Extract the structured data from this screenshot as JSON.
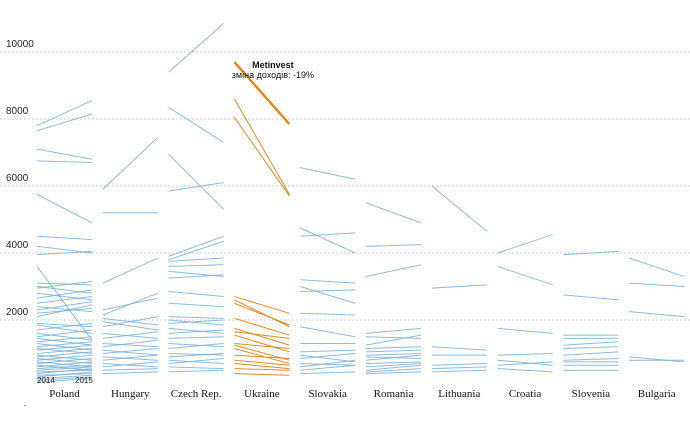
{
  "chart_data": {
    "type": "slope",
    "title": "",
    "ylabel": "",
    "ylim": [
      0,
      10500
    ],
    "yticks": [
      2000,
      4000,
      6000,
      8000,
      10000
    ],
    "ytick_labels": [
      "2000",
      "4000",
      "6000",
      "8000",
      "10000"
    ],
    "grid": true,
    "year_labels": [
      "2014",
      "2015"
    ],
    "colors": {
      "default": "#7bafd4",
      "highlight": "#e08a1e",
      "grid": "#cccccc"
    },
    "annotation": {
      "group": "Ukraine",
      "title": "Metinvest",
      "subtitle": "зміна доходів: -19%",
      "from": 9700,
      "to": 7850
    },
    "groups": [
      {
        "name": "Poland",
        "highlight": false,
        "series": [
          [
            7800,
            8550
          ],
          [
            7650,
            8150
          ],
          [
            7100,
            6800
          ],
          [
            6750,
            6700
          ],
          [
            5750,
            4900
          ],
          [
            4500,
            4400
          ],
          [
            4200,
            4000
          ],
          [
            3950,
            4050
          ],
          [
            3600,
            1400
          ],
          [
            3100,
            3050
          ],
          [
            3000,
            2800
          ],
          [
            2950,
            3150
          ],
          [
            2800,
            2600
          ],
          [
            2650,
            2900
          ],
          [
            2500,
            2700
          ],
          [
            2400,
            2250
          ],
          [
            2300,
            2550
          ],
          [
            2200,
            2350
          ],
          [
            2100,
            2450
          ],
          [
            1900,
            1800
          ],
          [
            1850,
            1600
          ],
          [
            1700,
            1900
          ],
          [
            1600,
            1400
          ],
          [
            1500,
            1700
          ],
          [
            1450,
            1250
          ],
          [
            1350,
            1500
          ],
          [
            1300,
            1100
          ],
          [
            1200,
            1350
          ],
          [
            1150,
            1000
          ],
          [
            1100,
            1250
          ],
          [
            1000,
            1150
          ],
          [
            950,
            800
          ],
          [
            900,
            1050
          ],
          [
            850,
            700
          ],
          [
            800,
            950
          ],
          [
            750,
            600
          ],
          [
            700,
            850
          ],
          [
            650,
            500
          ],
          [
            600,
            750
          ],
          [
            550,
            650
          ],
          [
            500,
            600
          ],
          [
            450,
            500
          ],
          [
            400,
            550
          ],
          [
            350,
            400
          ],
          [
            300,
            450
          ],
          [
            250,
            350
          ],
          [
            200,
            300
          ],
          [
            150,
            250
          ]
        ]
      },
      {
        "name": "Hungary",
        "highlight": false,
        "series": [
          [
            5900,
            7450
          ],
          [
            5200,
            5200
          ],
          [
            3100,
            3850
          ],
          [
            2300,
            2650
          ],
          [
            2150,
            2800
          ],
          [
            2050,
            1850
          ],
          [
            1950,
            1700
          ],
          [
            1800,
            2100
          ],
          [
            1600,
            1450
          ],
          [
            1450,
            1650
          ],
          [
            1300,
            1200
          ],
          [
            1200,
            1400
          ],
          [
            1100,
            950
          ],
          [
            1000,
            1150
          ],
          [
            900,
            800
          ],
          [
            800,
            950
          ],
          [
            700,
            600
          ],
          [
            600,
            750
          ],
          [
            500,
            550
          ],
          [
            400,
            450
          ]
        ]
      },
      {
        "name": "Czech Rep.",
        "highlight": false,
        "series": [
          [
            9400,
            10850
          ],
          [
            8350,
            7300
          ],
          [
            6950,
            5300
          ],
          [
            5850,
            6100
          ],
          [
            3900,
            4500
          ],
          [
            3800,
            4350
          ],
          [
            3750,
            3850
          ],
          [
            3600,
            3650
          ],
          [
            3450,
            3300
          ],
          [
            3250,
            3350
          ],
          [
            2850,
            2700
          ],
          [
            2500,
            2400
          ],
          [
            2100,
            2050
          ],
          [
            2000,
            1850
          ],
          [
            1900,
            2000
          ],
          [
            1750,
            1600
          ],
          [
            1600,
            1700
          ],
          [
            1450,
            1500
          ],
          [
            1300,
            1200
          ],
          [
            1150,
            1300
          ],
          [
            1000,
            950
          ],
          [
            900,
            1000
          ],
          [
            800,
            700
          ],
          [
            700,
            850
          ],
          [
            600,
            550
          ],
          [
            450,
            500
          ]
        ]
      },
      {
        "name": "Ukraine",
        "highlight": true,
        "series": [
          [
            9700,
            7850
          ],
          [
            8600,
            5750
          ],
          [
            8050,
            5700
          ],
          [
            2700,
            2200
          ],
          [
            2600,
            1800
          ],
          [
            2500,
            1850
          ],
          [
            2050,
            1550
          ],
          [
            1750,
            1250
          ],
          [
            1650,
            1450
          ],
          [
            1550,
            1050
          ],
          [
            1300,
            1150
          ],
          [
            1250,
            800
          ],
          [
            1150,
            700
          ],
          [
            950,
            850
          ],
          [
            800,
            650
          ],
          [
            700,
            550
          ],
          [
            550,
            500
          ],
          [
            400,
            350
          ]
        ]
      },
      {
        "name": "Slovakia",
        "highlight": false,
        "series": [
          [
            6550,
            6200
          ],
          [
            4750,
            4000
          ],
          [
            4500,
            4600
          ],
          [
            3200,
            3100
          ],
          [
            3000,
            2500
          ],
          [
            2850,
            2900
          ],
          [
            2200,
            2150
          ],
          [
            1800,
            1500
          ],
          [
            1300,
            1300
          ],
          [
            1050,
            1100
          ],
          [
            950,
            750
          ],
          [
            850,
            1000
          ],
          [
            700,
            650
          ],
          [
            600,
            800
          ],
          [
            500,
            650
          ],
          [
            400,
            450
          ]
        ]
      },
      {
        "name": "Romania",
        "highlight": false,
        "series": [
          [
            5500,
            4900
          ],
          [
            4200,
            4250
          ],
          [
            3300,
            3650
          ],
          [
            1600,
            1750
          ],
          [
            1500,
            1450
          ],
          [
            1250,
            1550
          ],
          [
            1150,
            1200
          ],
          [
            1050,
            1100
          ],
          [
            950,
            1000
          ],
          [
            900,
            850
          ],
          [
            800,
            950
          ],
          [
            700,
            750
          ],
          [
            600,
            700
          ],
          [
            500,
            650
          ],
          [
            450,
            550
          ],
          [
            400,
            450
          ]
        ]
      },
      {
        "name": "Lithuania",
        "highlight": false,
        "series": [
          [
            6000,
            4650
          ],
          [
            2950,
            3050
          ],
          [
            1200,
            1100
          ],
          [
            950,
            950
          ],
          [
            650,
            700
          ],
          [
            550,
            600
          ],
          [
            450,
            500
          ]
        ]
      },
      {
        "name": "Croatia",
        "highlight": false,
        "series": [
          [
            4000,
            4550
          ],
          [
            3600,
            3050
          ],
          [
            1750,
            1600
          ],
          [
            950,
            1000
          ],
          [
            800,
            650
          ],
          [
            650,
            750
          ],
          [
            550,
            450
          ]
        ]
      },
      {
        "name": "Slovenia",
        "highlight": false,
        "series": [
          [
            3950,
            4050
          ],
          [
            2750,
            2600
          ],
          [
            1550,
            1550
          ],
          [
            1450,
            1450
          ],
          [
            1250,
            1350
          ],
          [
            1150,
            1200
          ],
          [
            950,
            1050
          ],
          [
            800,
            850
          ],
          [
            750,
            750
          ],
          [
            650,
            650
          ],
          [
            500,
            500
          ]
        ]
      },
      {
        "name": "Bulgaria",
        "highlight": false,
        "series": [
          [
            3850,
            3300
          ],
          [
            3100,
            3000
          ],
          [
            2250,
            2100
          ],
          [
            900,
            750
          ],
          [
            800,
            800
          ]
        ]
      }
    ]
  }
}
